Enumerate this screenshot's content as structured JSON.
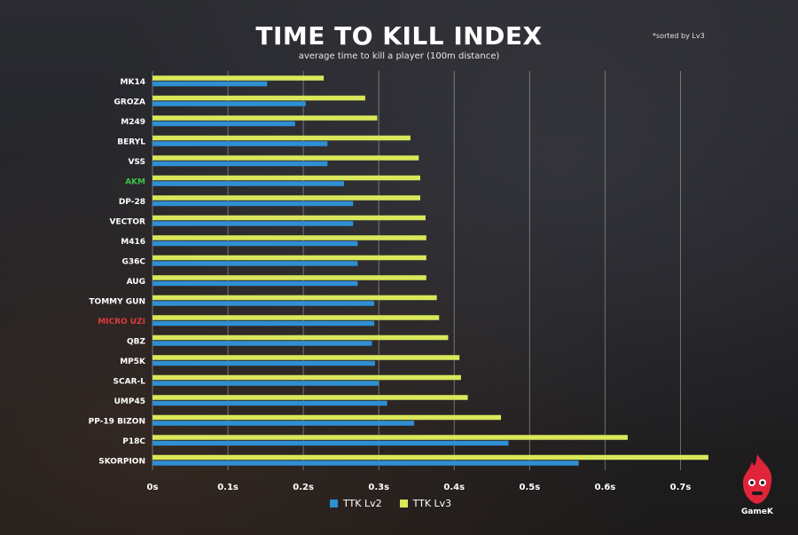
{
  "chart_data": {
    "type": "bar",
    "orientation": "horizontal",
    "title": "TIME TO KILL INDEX",
    "subtitle": "average time to kill a player (100m distance)",
    "note": "*sorted by Lv3",
    "categories": [
      "MK14",
      "GROZA",
      "M249",
      "BERYL",
      "VSS",
      "AKM",
      "DP-28",
      "VECTOR",
      "M416",
      "G36C",
      "AUG",
      "TOMMY GUN",
      "MICRO UZI",
      "QBZ",
      "MP5K",
      "SCAR-L",
      "UMP45",
      "PP-19 BIZON",
      "P18C",
      "SKORPION"
    ],
    "category_colors": {
      "AKM": "#3fc24a",
      "MICRO UZI": "#e0393a"
    },
    "series": [
      {
        "name": "TTK Lv2",
        "color": "#2f8fd3",
        "values": [
          0.152,
          0.203,
          0.189,
          0.232,
          0.232,
          0.254,
          0.266,
          0.266,
          0.272,
          0.272,
          0.272,
          0.294,
          0.294,
          0.291,
          0.295,
          0.3,
          0.311,
          0.347,
          0.472,
          0.565
        ]
      },
      {
        "name": "TTK Lv3",
        "color": "#d9e85a",
        "values": [
          0.227,
          0.282,
          0.298,
          0.342,
          0.353,
          0.355,
          0.355,
          0.362,
          0.363,
          0.363,
          0.363,
          0.377,
          0.38,
          0.392,
          0.407,
          0.409,
          0.418,
          0.462,
          0.63,
          0.737
        ]
      }
    ],
    "x_ticks": [
      "0s",
      "0.1s",
      "0.2s",
      "0.3s",
      "0.4s",
      "0.5s",
      "0.6s",
      "0.7s"
    ],
    "x_tick_values": [
      0,
      0.1,
      0.2,
      0.3,
      0.4,
      0.5,
      0.6,
      0.7
    ],
    "xlim": [
      0,
      0.75
    ],
    "grid": true,
    "legend_position": "bottom-center"
  },
  "logo": {
    "text": "GameK"
  }
}
